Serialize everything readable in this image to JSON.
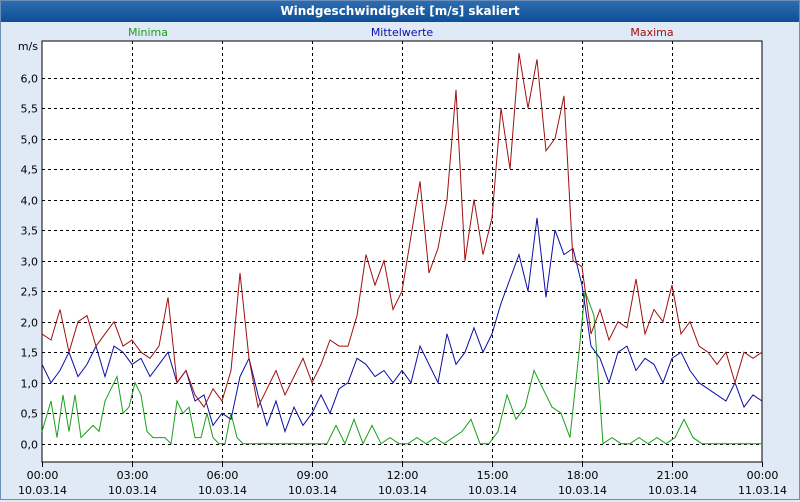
{
  "window": {
    "title": "Windgeschwindigkeit [m/s] skaliert"
  },
  "colors": {
    "minima": "#1aa01a",
    "mittelwerte": "#0d0da8",
    "maxima": "#a01010",
    "grid": "#000000",
    "plot_bg": "#ffffff"
  },
  "chart_data": {
    "type": "line",
    "title": "Windgeschwindigkeit [m/s] skaliert",
    "ylabel": "m/s",
    "xlabel": "",
    "ylim": [
      -0.3,
      6.6
    ],
    "xlim": [
      0,
      24
    ],
    "grid": true,
    "legend_position": "top",
    "yticks": [
      0.0,
      0.5,
      1.0,
      1.5,
      2.0,
      2.5,
      3.0,
      3.5,
      4.0,
      4.5,
      5.0,
      5.5,
      6.0
    ],
    "ytick_labels": [
      "0,0",
      "0,5",
      "1,0",
      "1,5",
      "2,0",
      "2,5",
      "3,0",
      "3,5",
      "4,0",
      "4,5",
      "5,0",
      "5,5",
      "6,0"
    ],
    "xticks": [
      0,
      3,
      6,
      9,
      12,
      15,
      18,
      21,
      24
    ],
    "xtick_labels": [
      {
        "time": "00:00",
        "date": "10.03.14"
      },
      {
        "time": "03:00",
        "date": "10.03.14"
      },
      {
        "time": "06:00",
        "date": "10.03.14"
      },
      {
        "time": "09:00",
        "date": "10.03.14"
      },
      {
        "time": "12:00",
        "date": "10.03.14"
      },
      {
        "time": "15:00",
        "date": "10.03.14"
      },
      {
        "time": "18:00",
        "date": "10.03.14"
      },
      {
        "time": "21:00",
        "date": "10.03.14"
      },
      {
        "time": "00:00",
        "date": "11.03.14"
      }
    ],
    "series": [
      {
        "name": "Minima",
        "x": [
          0,
          0.3,
          0.5,
          0.7,
          0.9,
          1.1,
          1.3,
          1.5,
          1.7,
          1.9,
          2.1,
          2.3,
          2.5,
          2.7,
          2.9,
          3.1,
          3.3,
          3.5,
          3.7,
          3.9,
          4.1,
          4.3,
          4.5,
          4.7,
          4.9,
          5.1,
          5.3,
          5.5,
          5.7,
          5.9,
          6.1,
          6.3,
          6.5,
          6.7,
          6.9,
          7.5,
          8.5,
          9.5,
          9.8,
          10.1,
          10.4,
          10.7,
          11,
          11.3,
          11.6,
          11.9,
          12.2,
          12.5,
          12.8,
          13.1,
          13.4,
          13.7,
          14,
          14.3,
          14.6,
          14.9,
          15.2,
          15.5,
          15.8,
          16.1,
          16.4,
          16.7,
          17,
          17.3,
          17.6,
          17.9,
          18.1,
          18.4,
          18.7,
          19,
          19.3,
          19.6,
          19.9,
          20.2,
          20.5,
          20.8,
          21.1,
          21.4,
          21.7,
          22,
          22.3,
          22.6,
          22.9,
          23.2,
          23.5,
          24
        ],
        "values": [
          0.2,
          0.7,
          0.1,
          0.8,
          0.2,
          0.8,
          0.1,
          0.2,
          0.3,
          0.2,
          0.7,
          0.9,
          1.1,
          0.5,
          0.6,
          1.0,
          0.8,
          0.2,
          0.1,
          0.1,
          0.1,
          0.0,
          0.7,
          0.5,
          0.6,
          0.1,
          0.1,
          0.5,
          0.1,
          0.0,
          0.0,
          0.5,
          0.1,
          0.0,
          0.0,
          0.0,
          0.0,
          0.0,
          0.3,
          0.0,
          0.4,
          0.0,
          0.3,
          0.0,
          0.1,
          0.0,
          0.0,
          0.1,
          0.0,
          0.1,
          0.0,
          0.1,
          0.2,
          0.4,
          0.0,
          0.0,
          0.2,
          0.8,
          0.4,
          0.6,
          1.2,
          0.9,
          0.6,
          0.5,
          0.1,
          1.5,
          2.5,
          2.1,
          0.0,
          0.1,
          0.0,
          0.0,
          0.1,
          0.0,
          0.1,
          0.0,
          0.1,
          0.4,
          0.1,
          0.0,
          0.0,
          0.0,
          0.0,
          0.0,
          0.0,
          0.0
        ]
      },
      {
        "name": "Mittelwerte",
        "x": [
          0,
          0.3,
          0.6,
          0.9,
          1.2,
          1.5,
          1.8,
          2.1,
          2.4,
          2.7,
          3,
          3.3,
          3.6,
          3.9,
          4.2,
          4.5,
          4.8,
          5.1,
          5.4,
          5.7,
          6,
          6.3,
          6.6,
          6.9,
          7.2,
          7.5,
          7.8,
          8.1,
          8.4,
          8.7,
          9,
          9.3,
          9.6,
          9.9,
          10.2,
          10.5,
          10.8,
          11.1,
          11.4,
          11.7,
          12,
          12.3,
          12.6,
          12.9,
          13.2,
          13.5,
          13.8,
          14.1,
          14.4,
          14.7,
          15,
          15.3,
          15.6,
          15.9,
          16.2,
          16.5,
          16.8,
          17.1,
          17.4,
          17.7,
          18,
          18.3,
          18.6,
          18.9,
          19.2,
          19.5,
          19.8,
          20.1,
          20.4,
          20.7,
          21,
          21.3,
          21.6,
          21.9,
          22.2,
          22.5,
          22.8,
          23.1,
          23.4,
          23.7,
          24
        ],
        "values": [
          1.3,
          1.0,
          1.2,
          1.5,
          1.1,
          1.3,
          1.6,
          1.1,
          1.6,
          1.5,
          1.3,
          1.4,
          1.1,
          1.3,
          1.5,
          1.0,
          1.2,
          0.7,
          0.8,
          0.3,
          0.5,
          0.4,
          1.1,
          1.4,
          0.8,
          0.3,
          0.7,
          0.2,
          0.6,
          0.3,
          0.5,
          0.8,
          0.5,
          0.9,
          1.0,
          1.4,
          1.3,
          1.1,
          1.2,
          1.0,
          1.2,
          1.0,
          1.6,
          1.3,
          1.0,
          1.8,
          1.3,
          1.5,
          1.9,
          1.5,
          1.8,
          2.3,
          2.7,
          3.1,
          2.5,
          3.7,
          2.4,
          3.5,
          3.1,
          3.2,
          2.6,
          1.6,
          1.4,
          1.0,
          1.5,
          1.6,
          1.2,
          1.4,
          1.3,
          1.0,
          1.4,
          1.5,
          1.2,
          1.0,
          0.9,
          0.8,
          0.7,
          1.0,
          0.6,
          0.8,
          0.7
        ]
      },
      {
        "name": "Maxima",
        "x": [
          0,
          0.3,
          0.6,
          0.9,
          1.2,
          1.5,
          1.8,
          2.1,
          2.4,
          2.7,
          3,
          3.3,
          3.6,
          3.9,
          4.2,
          4.5,
          4.8,
          5.1,
          5.4,
          5.7,
          6,
          6.3,
          6.6,
          6.9,
          7.2,
          7.5,
          7.8,
          8.1,
          8.4,
          8.7,
          9,
          9.3,
          9.6,
          9.9,
          10.2,
          10.5,
          10.8,
          11.1,
          11.4,
          11.7,
          12,
          12.3,
          12.6,
          12.9,
          13.2,
          13.5,
          13.8,
          14.1,
          14.4,
          14.7,
          15,
          15.3,
          15.6,
          15.9,
          16.2,
          16.5,
          16.8,
          17.1,
          17.4,
          17.7,
          18,
          18.3,
          18.6,
          18.9,
          19.2,
          19.5,
          19.8,
          20.1,
          20.4,
          20.7,
          21,
          21.3,
          21.6,
          21.9,
          22.2,
          22.5,
          22.8,
          23.1,
          23.4,
          23.7,
          24
        ],
        "values": [
          1.8,
          1.7,
          2.2,
          1.5,
          2.0,
          2.1,
          1.6,
          1.8,
          2.0,
          1.6,
          1.7,
          1.5,
          1.4,
          1.6,
          2.4,
          1.0,
          1.2,
          0.8,
          0.6,
          0.9,
          0.7,
          1.2,
          2.8,
          1.4,
          0.6,
          0.9,
          1.2,
          0.8,
          1.1,
          1.4,
          1.0,
          1.3,
          1.7,
          1.6,
          1.6,
          2.1,
          3.1,
          2.6,
          3.0,
          2.2,
          2.5,
          3.4,
          4.3,
          2.8,
          3.2,
          4.0,
          5.8,
          3.0,
          4.0,
          3.1,
          3.7,
          5.5,
          4.5,
          6.4,
          5.5,
          6.3,
          4.8,
          5.0,
          5.7,
          3.0,
          2.9,
          1.8,
          2.2,
          1.7,
          2.0,
          1.9,
          2.7,
          1.8,
          2.2,
          2.0,
          2.6,
          1.8,
          2.0,
          1.6,
          1.5,
          1.3,
          1.5,
          1.0,
          1.5,
          1.4,
          1.5
        ]
      }
    ]
  }
}
